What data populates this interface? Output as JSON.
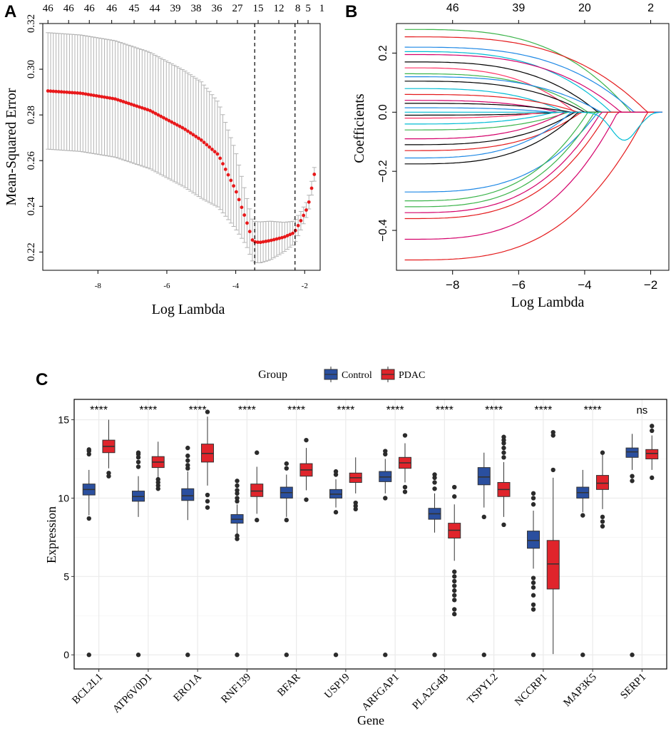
{
  "panels": {
    "a": "A",
    "b": "B",
    "c": "C"
  },
  "chart_data": [
    {
      "id": "A",
      "type": "scatter",
      "title": "",
      "xlabel": "Log Lambda",
      "ylabel": "Mean-Squared Error",
      "xlim": [
        -9.6,
        -1.55
      ],
      "ylim": [
        0.212,
        0.32
      ],
      "xticks": [
        -8,
        -6,
        -4,
        -2
      ],
      "yticks": [
        0.22,
        0.24,
        0.26,
        0.28,
        0.3,
        0.32
      ],
      "top_counts": [
        "46",
        "46",
        "46",
        "46",
        "45",
        "44",
        "39",
        "38",
        "36",
        "27",
        "15",
        "12",
        "8",
        "5",
        "1"
      ],
      "top_count_x": [
        -9.45,
        -8.85,
        -8.25,
        -7.6,
        -6.95,
        -6.35,
        -5.75,
        -5.15,
        -4.55,
        -3.95,
        -3.35,
        -2.75,
        -2.2,
        -1.9,
        -1.5
      ],
      "vlines": [
        -3.45,
        -2.28
      ],
      "series": {
        "x_start": -9.45,
        "x_end": -1.72,
        "n_points": 100,
        "knots_x": [
          -9.45,
          -8.5,
          -7.5,
          -6.5,
          -5.5,
          -5.0,
          -4.5,
          -4.0,
          -3.7,
          -3.5,
          -3.3,
          -3.0,
          -2.6,
          -2.3,
          -2.1,
          -1.9,
          -1.72
        ],
        "knots_y": [
          0.2905,
          0.2895,
          0.287,
          0.282,
          0.274,
          0.269,
          0.2625,
          0.247,
          0.234,
          0.2245,
          0.2242,
          0.225,
          0.2265,
          0.2285,
          0.234,
          0.24,
          0.254
        ],
        "knots_e": [
          0.0255,
          0.0255,
          0.0255,
          0.0255,
          0.0255,
          0.0255,
          0.023,
          0.017,
          0.011,
          0.009,
          0.009,
          0.0085,
          0.0065,
          0.005,
          0.004,
          0.003,
          0.003
        ],
        "point_color": "#e8191b",
        "bar_color": "#b3b3b3"
      }
    },
    {
      "id": "B",
      "type": "line",
      "title": "",
      "xlabel": "Log Lambda",
      "ylabel": "Coefficients",
      "xlim": [
        -9.7,
        -1.45
      ],
      "ylim": [
        -0.535,
        0.3
      ],
      "xticks": [
        -8,
        -6,
        -4,
        -2
      ],
      "yticks": [
        -0.4,
        -0.2,
        0.0,
        0.2
      ],
      "top_counts": [
        "46",
        "39",
        "20",
        "2"
      ],
      "top_count_x": [
        -8,
        -6,
        -4,
        -2
      ],
      "x_start": -9.45,
      "x_end": -1.65,
      "colors": [
        "#000000",
        "#e41a1c",
        "#3cb44b",
        "#1e88e5",
        "#d4006a",
        "#00bcd4",
        "#ff3366",
        "#7a7a7a"
      ],
      "paths": [
        {
          "y0": 0.28,
          "zero_x": -2.6,
          "color": 2
        },
        {
          "y0": 0.255,
          "zero_x": -2.1,
          "color": 1
        },
        {
          "y0": 0.22,
          "zero_x": -2.5,
          "color": 3
        },
        {
          "y0": 0.205,
          "zero_x": -3.2,
          "color": 5
        },
        {
          "y0": 0.195,
          "zero_x": -2.9,
          "color": 4
        },
        {
          "y0": 0.17,
          "zero_x": -3.6,
          "color": 0
        },
        {
          "y0": 0.15,
          "zero_x": -4.3,
          "color": 6
        },
        {
          "y0": 0.13,
          "zero_x": -3.9,
          "color": 2
        },
        {
          "y0": 0.12,
          "zero_x": -3.5,
          "color": 3
        },
        {
          "y0": 0.105,
          "zero_x": -4.0,
          "color": 0
        },
        {
          "y0": 0.08,
          "zero_x": -4.6,
          "color": 5
        },
        {
          "y0": 0.06,
          "zero_x": -4.2,
          "color": 1
        },
        {
          "y0": 0.04,
          "zero_x": -4.8,
          "color": 4
        },
        {
          "y0": 0.03,
          "zero_x": -4.4,
          "color": 0
        },
        {
          "y0": 0.015,
          "zero_x": -5.0,
          "color": 3
        },
        {
          "y0": -0.01,
          "zero_x": -4.7,
          "color": 0
        },
        {
          "y0": -0.02,
          "zero_x": -5.2,
          "color": 6
        },
        {
          "y0": -0.04,
          "zero_x": -4.9,
          "color": 5
        },
        {
          "y0": -0.06,
          "zero_x": -4.5,
          "color": 2
        },
        {
          "y0": -0.09,
          "zero_x": -4.6,
          "color": 4
        },
        {
          "y0": -0.11,
          "zero_x": -4.3,
          "color": 0
        },
        {
          "y0": -0.13,
          "zero_x": -4.1,
          "color": 1
        },
        {
          "y0": -0.155,
          "zero_x": -4.4,
          "color": 3
        },
        {
          "y0": -0.175,
          "zero_x": -4.2,
          "color": 0
        },
        {
          "y0": -0.27,
          "zero_x": -3.6,
          "color": 3
        },
        {
          "y0": -0.3,
          "zero_x": -3.9,
          "color": 2
        },
        {
          "y0": -0.32,
          "zero_x": -3.7,
          "color": 2
        },
        {
          "y0": -0.34,
          "zero_x": -3.5,
          "color": 4
        },
        {
          "y0": -0.36,
          "zero_x": -3.3,
          "color": 1
        },
        {
          "y0": -0.43,
          "zero_x": -3.0,
          "color": 4
        },
        {
          "y0": -0.5,
          "zero_x": -2.1,
          "color": 1
        },
        {
          "y0": 0.0,
          "zero_x": -1.9,
          "color": 5,
          "late_bump": -0.095
        }
      ]
    },
    {
      "id": "C",
      "type": "box",
      "title": "",
      "xlabel": "Gene",
      "ylabel": "Expression",
      "ylim": [
        -0.9,
        16.3
      ],
      "yticks": [
        0,
        5,
        10,
        15
      ],
      "legend": {
        "title": "Group",
        "entries": [
          "Control",
          "PDAC"
        ],
        "position": "top"
      },
      "group_colors": [
        "#2a4f9f",
        "#e0242b"
      ],
      "categories": [
        "BCL2L1",
        "ATP6V0D1",
        "ERO1A",
        "RNF139",
        "BFAR",
        "USP19",
        "ARFGAP1",
        "PLA2G4B",
        "TSPYL2",
        "NCCRP1",
        "MAP3K5",
        "SERP1"
      ],
      "significance": [
        "****",
        "****",
        "****",
        "****",
        "****",
        "****",
        "****",
        "****",
        "****",
        "****",
        "****",
        "ns"
      ],
      "series": [
        {
          "name": "Control",
          "boxes": [
            {
              "q1": 10.2,
              "median": 10.55,
              "q3": 10.9,
              "wlo": 8.9,
              "whi": 11.8,
              "outliers": [
                0,
                8.7,
                12.8,
                13.0,
                13.1
              ]
            },
            {
              "q1": 9.8,
              "median": 10.1,
              "q3": 10.45,
              "wlo": 8.8,
              "whi": 11.4,
              "outliers": [
                0,
                12.0,
                12.3,
                12.6,
                12.8,
                12.9
              ]
            },
            {
              "q1": 9.85,
              "median": 10.15,
              "q3": 10.6,
              "wlo": 8.6,
              "whi": 11.7,
              "outliers": [
                0,
                11.9,
                12.1,
                12.4,
                12.7,
                13.2
              ]
            },
            {
              "q1": 8.4,
              "median": 8.65,
              "q3": 8.95,
              "wlo": 7.6,
              "whi": 9.6,
              "outliers": [
                0,
                7.4,
                7.6,
                9.8,
                10.0,
                10.3,
                10.5,
                10.8,
                11.1
              ]
            },
            {
              "q1": 10.0,
              "median": 10.35,
              "q3": 10.7,
              "wlo": 8.8,
              "whi": 11.5,
              "outliers": [
                0,
                8.6,
                11.9,
                12.2
              ]
            },
            {
              "q1": 10.0,
              "median": 10.25,
              "q3": 10.55,
              "wlo": 9.4,
              "whi": 11.2,
              "outliers": [
                0,
                9.1,
                11.5,
                11.7
              ]
            },
            {
              "q1": 11.05,
              "median": 11.35,
              "q3": 11.7,
              "wlo": 10.3,
              "whi": 12.5,
              "outliers": [
                0,
                10.0,
                12.8,
                13.0
              ]
            },
            {
              "q1": 8.65,
              "median": 9.0,
              "q3": 9.35,
              "wlo": 7.8,
              "whi": 10.3,
              "outliers": [
                0,
                10.6,
                11.0,
                11.3,
                11.5
              ]
            },
            {
              "q1": 10.85,
              "median": 11.35,
              "q3": 11.95,
              "wlo": 9.4,
              "whi": 12.9,
              "outliers": [
                0,
                8.8
              ]
            },
            {
              "q1": 6.8,
              "median": 7.3,
              "q3": 7.9,
              "wlo": 5.5,
              "whi": 9.2,
              "outliers": [
                0,
                2.9,
                3.2,
                3.8,
                4.3,
                4.6,
                4.9,
                9.6,
                10.0,
                10.3
              ]
            },
            {
              "q1": 10.0,
              "median": 10.35,
              "q3": 10.7,
              "wlo": 9.1,
              "whi": 11.8,
              "outliers": [
                0,
                8.9
              ]
            },
            {
              "q1": 12.6,
              "median": 12.95,
              "q3": 13.2,
              "wlo": 11.8,
              "whi": 14.1,
              "outliers": [
                0,
                11.1,
                11.4
              ]
            }
          ]
        },
        {
          "name": "PDAC",
          "boxes": [
            {
              "q1": 12.9,
              "median": 13.3,
              "q3": 13.7,
              "wlo": 11.9,
              "whi": 15.0,
              "outliers": [
                11.4,
                11.6
              ]
            },
            {
              "q1": 11.95,
              "median": 12.3,
              "q3": 12.65,
              "wlo": 11.3,
              "whi": 13.6,
              "outliers": [
                10.6,
                10.8,
                11.0,
                11.2
              ]
            },
            {
              "q1": 12.3,
              "median": 12.85,
              "q3": 13.45,
              "wlo": 10.8,
              "whi": 15.2,
              "outliers": [
                9.4,
                9.8,
                10.2,
                15.5
              ]
            },
            {
              "q1": 10.1,
              "median": 10.45,
              "q3": 10.9,
              "wlo": 9.0,
              "whi": 12.0,
              "outliers": [
                8.6,
                12.9
              ]
            },
            {
              "q1": 11.4,
              "median": 11.8,
              "q3": 12.2,
              "wlo": 10.5,
              "whi": 13.2,
              "outliers": [
                9.9,
                13.7
              ]
            },
            {
              "q1": 11.0,
              "median": 11.3,
              "q3": 11.6,
              "wlo": 10.3,
              "whi": 12.6,
              "outliers": [
                9.3,
                9.5,
                9.7
              ]
            },
            {
              "q1": 11.9,
              "median": 12.25,
              "q3": 12.6,
              "wlo": 11.0,
              "whi": 13.5,
              "outliers": [
                10.4,
                10.7,
                14.0
              ]
            },
            {
              "q1": 7.45,
              "median": 7.95,
              "q3": 8.4,
              "wlo": 6.0,
              "whi": 9.6,
              "outliers": [
                2.6,
                2.9,
                3.5,
                3.8,
                4.1,
                4.4,
                4.7,
                5.0,
                5.3,
                10.1,
                10.7
              ]
            },
            {
              "q1": 10.1,
              "median": 10.55,
              "q3": 11.0,
              "wlo": 8.8,
              "whi": 12.3,
              "outliers": [
                8.3,
                12.6,
                12.9,
                13.2,
                13.5,
                13.7,
                13.9
              ]
            },
            {
              "q1": 4.2,
              "median": 5.8,
              "q3": 7.3,
              "wlo": 0.05,
              "whi": 11.3,
              "outliers": [
                11.8,
                14.0,
                14.2
              ]
            },
            {
              "q1": 10.55,
              "median": 10.95,
              "q3": 11.45,
              "wlo": 9.3,
              "whi": 12.8,
              "outliers": [
                8.2,
                8.5,
                8.8,
                12.9
              ]
            },
            {
              "q1": 12.5,
              "median": 12.85,
              "q3": 13.1,
              "wlo": 11.8,
              "whi": 14.0,
              "outliers": [
                11.3,
                14.3,
                14.6
              ]
            }
          ]
        }
      ]
    }
  ]
}
